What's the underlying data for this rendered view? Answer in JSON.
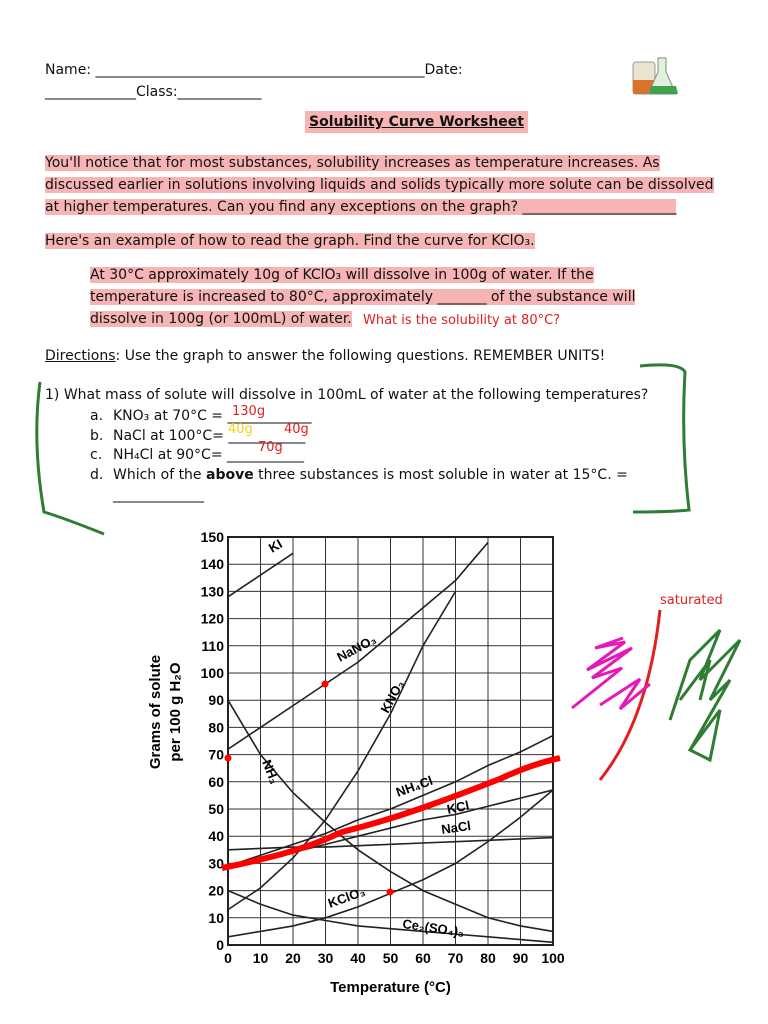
{
  "header": {
    "name_line": "Name: _______________________________________________Date:",
    "class_line": "_____________Class:____________",
    "title": "Solubility Curve Worksheet"
  },
  "intro": "You'll notice that for most substances, solubility increases as temperature increases. As discussed earlier in solutions involving liquids and solids typically more solute can be dissolved at higher temperatures. Can you find any exceptions on the graph? ______________________",
  "example": "Here's an example of how to read the graph. Find the curve for KClO₃.",
  "example_detail": "At 30°C approximately 10g of KClO₃ will dissolve in 100g of water. If the temperature is increased to 80°C, approximately _______ of the substance will dissolve in 100g (or 100mL) of water.",
  "example_note": "What is the solubility at 80°C?",
  "directions": {
    "label": "Directions",
    "text": ": Use the graph to answer the following questions. REMEMBER UNITS!"
  },
  "question": {
    "text": "1)  What mass of solute will dissolve in 100mL of water at the following temperatures?",
    "items": [
      {
        "marker": "a.",
        "text": "KNO₃ at 70°C = ____________",
        "answers": [
          {
            "text": "130g",
            "color": "#e02020"
          }
        ]
      },
      {
        "marker": "b.",
        "text": " NaCl at 100°C= ___________",
        "answers": [
          {
            "text": "40g",
            "color": "#f2d21b"
          },
          {
            "text": "40g",
            "color": "#e02020"
          }
        ]
      },
      {
        "marker": "c.",
        "text": "NH₄Cl at 90°C= ___________",
        "answers": [
          {
            "text": "70g",
            "color": "#e02020"
          }
        ]
      },
      {
        "marker": "d.",
        "text_before": "Which of the ",
        "bold": "above",
        "text_after": " three substances is most soluble in water at 15°C. =",
        "blank": "_____________"
      }
    ]
  },
  "annotation": "saturated",
  "chart_data": {
    "type": "line",
    "xlabel": "Temperature (°C)",
    "ylabel": [
      "Grams of solute",
      "per 100 g H₂O"
    ],
    "x": [
      0,
      10,
      20,
      30,
      40,
      50,
      60,
      70,
      80,
      90,
      100
    ],
    "xlim": [
      0,
      100
    ],
    "ylim": [
      0,
      150
    ],
    "xticks": [
      0,
      10,
      20,
      30,
      40,
      50,
      60,
      70,
      80,
      90,
      100
    ],
    "yticks": [
      0,
      10,
      20,
      30,
      40,
      50,
      60,
      70,
      80,
      90,
      100,
      110,
      120,
      130,
      140,
      150
    ],
    "grid": true,
    "series": [
      {
        "name": "KI",
        "color": "#222222",
        "values": [
          128,
          136,
          144,
          null,
          null,
          null,
          null,
          null,
          null,
          null,
          null
        ]
      },
      {
        "name": "NaNO₃",
        "color": "#222222",
        "values": [
          72,
          80,
          88,
          96,
          104,
          114,
          124,
          134,
          148,
          null,
          null
        ]
      },
      {
        "name": "KNO₃",
        "color": "#222222",
        "values": [
          13,
          21,
          32,
          46,
          64,
          85,
          110,
          130,
          null,
          null,
          null
        ]
      },
      {
        "name": "NH₃",
        "color": "#222222",
        "values": [
          90,
          70,
          56,
          45,
          35,
          27,
          20,
          15,
          10,
          7,
          5
        ]
      },
      {
        "name": "NH₄Cl",
        "color": "#222222",
        "values": [
          29,
          33,
          37,
          41,
          46,
          50,
          55,
          60,
          66,
          71,
          77
        ]
      },
      {
        "name": "KCl",
        "color": "#222222",
        "values": [
          28,
          31,
          34,
          37,
          40,
          43,
          46,
          48,
          51,
          54,
          57
        ]
      },
      {
        "name": "NaCl",
        "color": "#222222",
        "values": [
          35,
          35.5,
          36,
          36,
          36.5,
          37,
          37.5,
          38,
          38.5,
          39,
          39.5
        ]
      },
      {
        "name": "KClO₃",
        "color": "#222222",
        "values": [
          3,
          5,
          7,
          10,
          14,
          19,
          24,
          30,
          38,
          47,
          57
        ]
      },
      {
        "name": "Ce₂(SO₄)₃",
        "color": "#222222",
        "values": [
          20,
          15,
          11,
          9,
          7,
          6,
          5,
          4,
          3,
          2,
          1
        ]
      }
    ]
  }
}
